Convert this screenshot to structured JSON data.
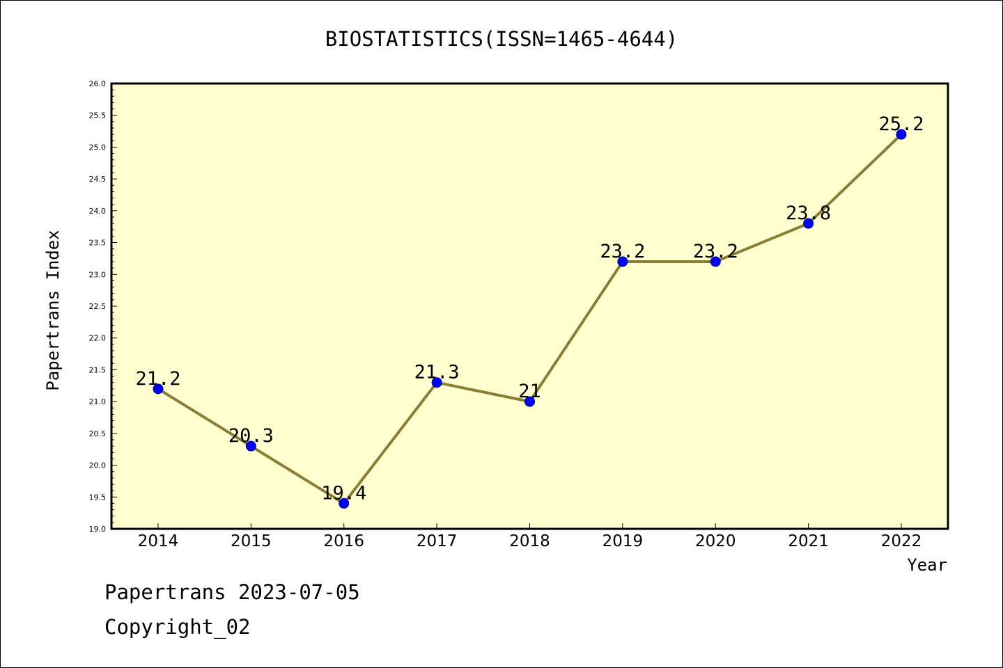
{
  "footer": {
    "line1": "Papertrans 2023-07-05",
    "line2": "Copyright_02"
  },
  "chart_data": {
    "type": "line",
    "title": "BIOSTATISTICS(ISSN=1465-4644)",
    "xlabel": "Year",
    "ylabel": "Papertrans Index",
    "categories": [
      "2014",
      "2015",
      "2016",
      "2017",
      "2018",
      "2019",
      "2020",
      "2021",
      "2022"
    ],
    "values": [
      21.2,
      20.3,
      19.4,
      21.3,
      21,
      23.2,
      23.2,
      23.8,
      25.2
    ],
    "data_labels": [
      "21.2",
      "20.3",
      "19.4",
      "21.3",
      "21",
      "23.2",
      "23.2",
      "23.8",
      "25.2"
    ],
    "ylim": [
      19.0,
      26.0
    ],
    "yticks": [
      "19.0",
      "19.5",
      "20.0",
      "20.5",
      "21.0",
      "21.5",
      "22.0",
      "22.5",
      "23.0",
      "23.5",
      "24.0",
      "24.5",
      "25.0",
      "25.5",
      "26.0"
    ],
    "grid": false,
    "colors": {
      "plot_background": "#ffffd0",
      "line": "#8b7d36",
      "marker": "#0000ff",
      "marker_edge": "#00008b"
    }
  }
}
